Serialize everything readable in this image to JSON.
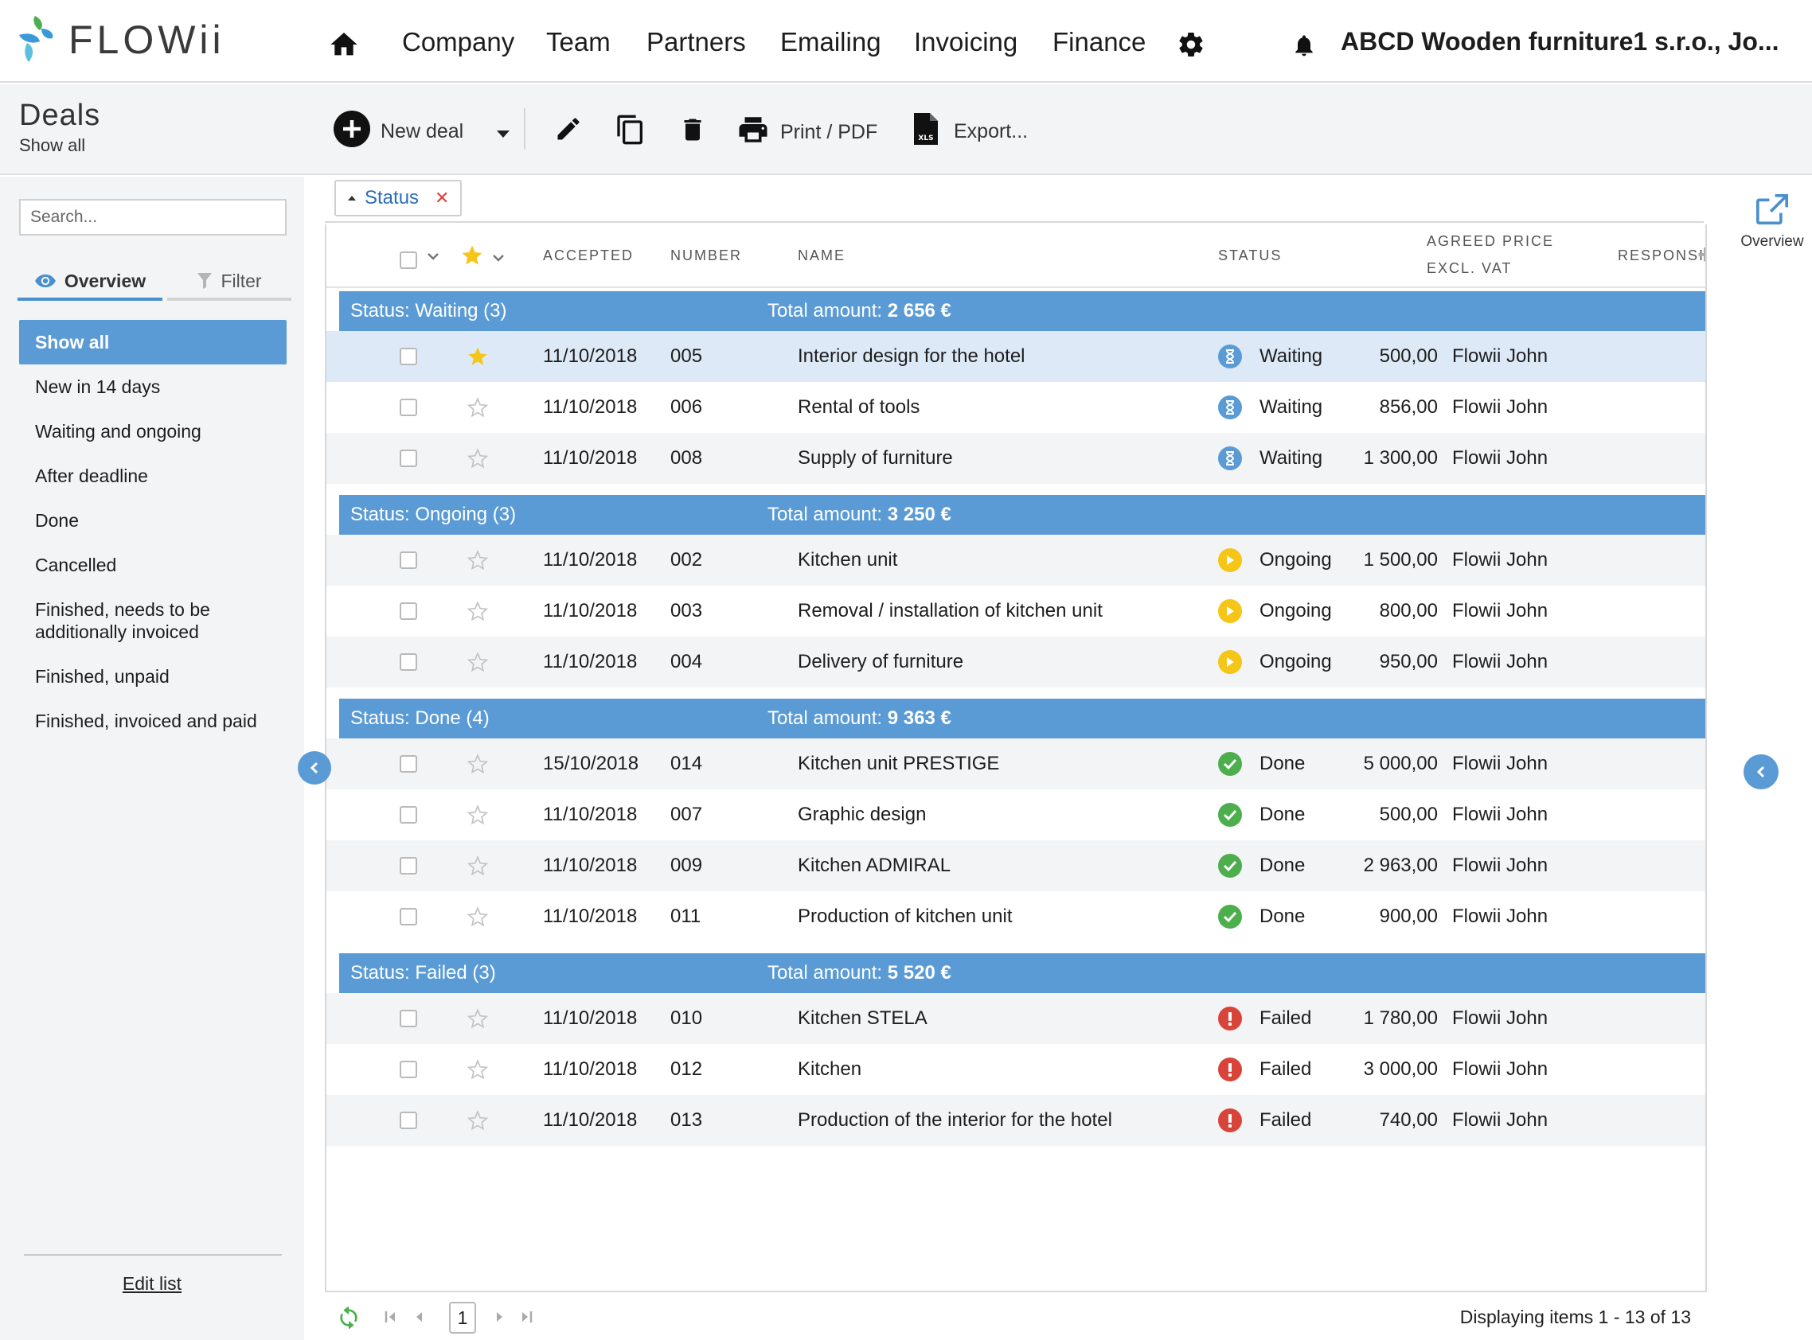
{
  "nav": {
    "logo_text": "FLOWii",
    "items": [
      "Company",
      "Team",
      "Partners",
      "Emailing",
      "Invoicing",
      "Finance"
    ],
    "company": "ABCD Wooden furniture1 s.r.o., Jo..."
  },
  "toolbar": {
    "title": "Deals",
    "subtitle": "Show all",
    "new_deal": "New deal",
    "print": "Print / PDF",
    "export": "Export..."
  },
  "sidebar": {
    "search_placeholder": "Search...",
    "tab_overview": "Overview",
    "tab_filter": "Filter",
    "items": [
      {
        "label": "Show all",
        "active": true
      },
      {
        "label": "New in 14 days"
      },
      {
        "label": "Waiting and ongoing"
      },
      {
        "label": "After deadline"
      },
      {
        "label": "Done"
      },
      {
        "label": "Cancelled"
      },
      {
        "label": "Finished, needs to be additionally invoiced"
      },
      {
        "label": "Finished, unpaid"
      },
      {
        "label": "Finished, invoiced and paid"
      }
    ],
    "edit_list": "Edit list"
  },
  "grouping": {
    "chip_label": "Status"
  },
  "table": {
    "columns": {
      "accepted": "ACCEPTED",
      "number": "NUMBER",
      "name": "NAME",
      "status": "STATUS",
      "price_line1": "AGREED PRICE",
      "price_line2": "EXCL. VAT",
      "responsible": "RESPONSIBLE"
    },
    "groups": [
      {
        "label": "Status: Waiting (3)",
        "total_label": "Total amount:",
        "total": "2 656 €",
        "rows": [
          {
            "starred": true,
            "selected": true,
            "accepted": "11/10/2018",
            "number": "005",
            "name": "Interior design for the hotel",
            "status": "Waiting",
            "status_kind": "waiting",
            "price": "500,00",
            "responsible": "Flowii John"
          },
          {
            "starred": false,
            "accepted": "11/10/2018",
            "number": "006",
            "name": "Rental of tools",
            "status": "Waiting",
            "status_kind": "waiting",
            "price": "856,00",
            "responsible": "Flowii John"
          },
          {
            "starred": false,
            "accepted": "11/10/2018",
            "number": "008",
            "name": "Supply of furniture",
            "status": "Waiting",
            "status_kind": "waiting",
            "price": "1 300,00",
            "responsible": "Flowii John"
          }
        ]
      },
      {
        "label": "Status: Ongoing (3)",
        "total_label": "Total amount:",
        "total": "3 250 €",
        "rows": [
          {
            "starred": false,
            "accepted": "11/10/2018",
            "number": "002",
            "name": "Kitchen unit",
            "status": "Ongoing",
            "status_kind": "ongoing",
            "price": "1 500,00",
            "responsible": "Flowii John"
          },
          {
            "starred": false,
            "accepted": "11/10/2018",
            "number": "003",
            "name": "Removal / installation of kitchen unit",
            "status": "Ongoing",
            "status_kind": "ongoing",
            "price": "800,00",
            "responsible": "Flowii John"
          },
          {
            "starred": false,
            "accepted": "11/10/2018",
            "number": "004",
            "name": "Delivery of furniture",
            "status": "Ongoing",
            "status_kind": "ongoing",
            "price": "950,00",
            "responsible": "Flowii John"
          }
        ]
      },
      {
        "label": "Status: Done (4)",
        "total_label": "Total amount:",
        "total": "9 363 €",
        "rows": [
          {
            "starred": false,
            "accepted": "15/10/2018",
            "number": "014",
            "name": "Kitchen unit PRESTIGE",
            "status": "Done",
            "status_kind": "done",
            "price": "5 000,00",
            "responsible": "Flowii John"
          },
          {
            "starred": false,
            "accepted": "11/10/2018",
            "number": "007",
            "name": "Graphic design",
            "status": "Done",
            "status_kind": "done",
            "price": "500,00",
            "responsible": "Flowii John"
          },
          {
            "starred": false,
            "accepted": "11/10/2018",
            "number": "009",
            "name": "Kitchen ADMIRAL",
            "status": "Done",
            "status_kind": "done",
            "price": "2 963,00",
            "responsible": "Flowii John"
          },
          {
            "starred": false,
            "accepted": "11/10/2018",
            "number": "011",
            "name": "Production of kitchen unit",
            "status": "Done",
            "status_kind": "done",
            "price": "900,00",
            "responsible": "Flowii John"
          }
        ]
      },
      {
        "label": "Status: Failed (3)",
        "total_label": "Total amount:",
        "total": "5 520 €",
        "rows": [
          {
            "starred": false,
            "accepted": "11/10/2018",
            "number": "010",
            "name": "Kitchen STELA",
            "status": "Failed",
            "status_kind": "failed",
            "price": "1 780,00",
            "responsible": "Flowii John"
          },
          {
            "starred": false,
            "accepted": "11/10/2018",
            "number": "012",
            "name": "Kitchen",
            "status": "Failed",
            "status_kind": "failed",
            "price": "3 000,00",
            "responsible": "Flowii John"
          },
          {
            "starred": false,
            "accepted": "11/10/2018",
            "number": "013",
            "name": "Production of the interior for the hotel",
            "status": "Failed",
            "status_kind": "failed",
            "price": "740,00",
            "responsible": "Flowii John"
          }
        ]
      }
    ]
  },
  "pager": {
    "page": "1",
    "info": "Displaying items 1 - 13 of 13"
  },
  "right_panel": {
    "overview_label": "Overview"
  },
  "colors": {
    "accent": "#5b9bd5",
    "waiting": "#5b9bd5",
    "ongoing": "#f5c518",
    "done": "#4cae4c",
    "failed": "#d9443a",
    "star": "#f5c518"
  }
}
